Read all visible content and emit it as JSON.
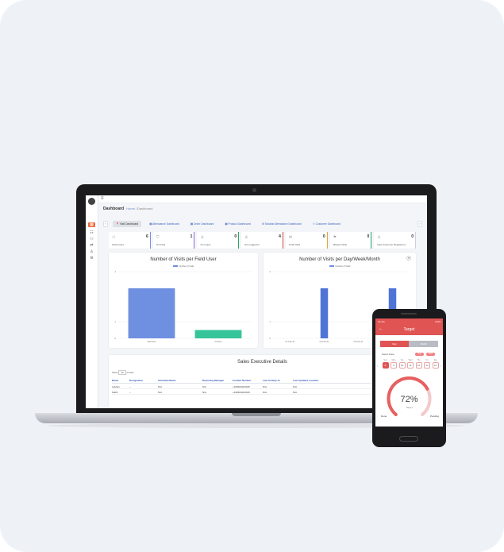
{
  "breadcrumb": {
    "title": "Dashboard",
    "home": "Home",
    "current": "Dashboard"
  },
  "tabs": [
    "Visit Dashboard",
    "Attendance Dashboard",
    "Order Dashboard",
    "Product Dashboard",
    "Stockist Attendance Dashboard",
    "Customer Dashboard"
  ],
  "stats": [
    {
      "label": "Total Users",
      "value": "6",
      "color": "#7a8fe0"
    },
    {
      "label": "On Field",
      "value": "1",
      "color": "#8e6ad8"
    },
    {
      "label": "On Leave",
      "value": "0",
      "color": "#2aa56a"
    },
    {
      "label": "Not Logged In",
      "value": "4",
      "color": "#d44c4c"
    },
    {
      "label": "Total Visits",
      "value": "0",
      "color": "#e4a73c"
    },
    {
      "label": "Missed Visits",
      "value": "0",
      "color": "#26a07a"
    },
    {
      "label": "New Customer Registered",
      "value": "0",
      "color": "#cfd2da"
    }
  ],
  "chart_data": [
    {
      "type": "bar",
      "title": "Number of Visits per Field User",
      "legend": [
        "Number of Visits"
      ],
      "categories": [
        "Ravindra",
        "Krishna"
      ],
      "values": [
        3,
        0.5
      ],
      "colors": [
        "#6f8fe0",
        "#36c49a"
      ],
      "yticks": [
        "4",
        "1",
        "0"
      ],
      "ylim": [
        0,
        4
      ]
    },
    {
      "type": "bar",
      "title": "Number of Visits per Day/Week/Month",
      "legend": [
        "Number of Visits"
      ],
      "categories": [
        "01-Feb-21",
        "02-Feb-21",
        "03-Feb-21",
        "04-Feb-21"
      ],
      "values": [
        0,
        3,
        0,
        3
      ],
      "colors": [
        "#4f74d8",
        "#4f74d8",
        "#4f74d8",
        "#4f74d8"
      ],
      "yticks": [
        "4",
        "1",
        "0"
      ],
      "ylim": [
        0,
        4
      ]
    }
  ],
  "table": {
    "title": "Sales Executive Details",
    "show_label": "Show",
    "page_size": "10",
    "entries_label": "entries",
    "columns": [
      "Name",
      "Designation",
      "Allocated Beats",
      "Reporting Manager",
      "Contact Number",
      "Last Activity At",
      "Last Updated Location"
    ],
    "rows": [
      [
        "Lakhan",
        "--",
        "N/A",
        "N/A",
        "+918460184045",
        "N/A",
        "N/A"
      ],
      [
        "Nikhil",
        "--",
        "N/A",
        "N/A",
        "+918460184045",
        "N/A",
        "N/A"
      ]
    ]
  },
  "phone": {
    "status_left": "Jio 4G",
    "status_right": "3 PM",
    "title": "Target",
    "options": [
      "Day",
      "Month"
    ],
    "select_date_label": "Select Date",
    "month_pill": "Aug",
    "year_pill": "2021",
    "days": [
      {
        "name": "Sun",
        "num": "8"
      },
      {
        "name": "Mon",
        "num": "9"
      },
      {
        "name": "Tue",
        "num": "10"
      },
      {
        "name": "Wed",
        "num": "11"
      },
      {
        "name": "Thu",
        "num": "12"
      },
      {
        "name": "Fri",
        "num": "13"
      },
      {
        "name": "Sat",
        "num": "14"
      }
    ],
    "gauge_percent": 72,
    "gauge_label": "72%",
    "gauge_sub": "Target",
    "done_label": "Done",
    "pending_label": "Pending"
  },
  "icons": {
    "menu": "hamburger-icon",
    "chevron_left": "chevron-left-icon",
    "chevron_right": "chevron-right-icon",
    "filter": "filter-icon"
  }
}
